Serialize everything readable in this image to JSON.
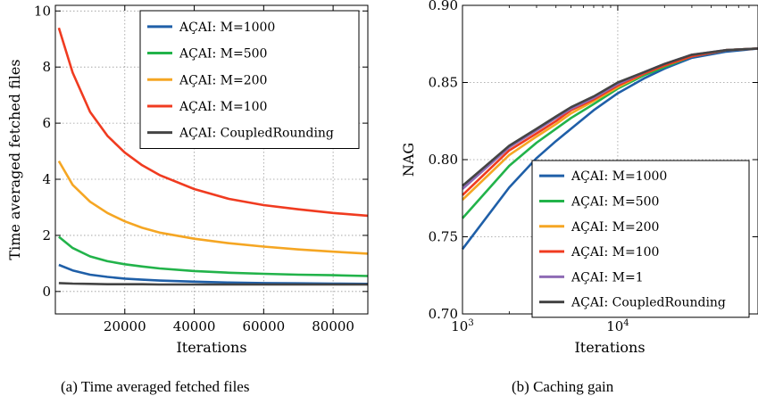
{
  "chart_data": [
    {
      "type": "line",
      "caption": "(a) Time averaged fetched files",
      "xlabel": "Iterations",
      "ylabel": "Time averaged fetched files",
      "xlim": [
        0,
        90000
      ],
      "ylim": [
        -0.8,
        10.2
      ],
      "xticks": [
        20000,
        40000,
        60000,
        80000
      ],
      "xtick_labels": [
        "20000",
        "40000",
        "60000",
        "80000"
      ],
      "yticks": [
        0,
        2,
        4,
        6,
        8,
        10
      ],
      "ytick_labels": [
        "0",
        "2",
        "4",
        "6",
        "8",
        "10"
      ],
      "grid": true,
      "legend": "top-right",
      "x": [
        1000,
        5000,
        10000,
        15000,
        20000,
        25000,
        30000,
        40000,
        50000,
        60000,
        70000,
        80000,
        90000
      ],
      "series": [
        {
          "name": "AÇAI: M=1000",
          "color": "#1f5fa8",
          "values": [
            0.95,
            0.75,
            0.6,
            0.52,
            0.46,
            0.42,
            0.39,
            0.35,
            0.32,
            0.3,
            0.29,
            0.28,
            0.27
          ]
        },
        {
          "name": "AÇAI: M=500",
          "color": "#22b34a",
          "values": [
            1.95,
            1.55,
            1.25,
            1.08,
            0.97,
            0.89,
            0.82,
            0.73,
            0.67,
            0.63,
            0.6,
            0.58,
            0.55
          ]
        },
        {
          "name": "AÇAI: M=200",
          "color": "#f5a623",
          "values": [
            4.65,
            3.8,
            3.2,
            2.8,
            2.5,
            2.27,
            2.1,
            1.88,
            1.72,
            1.6,
            1.5,
            1.42,
            1.35
          ]
        },
        {
          "name": "AÇAI: M=100",
          "color": "#f03b20",
          "values": [
            9.4,
            7.8,
            6.4,
            5.55,
            4.95,
            4.5,
            4.15,
            3.65,
            3.3,
            3.08,
            2.93,
            2.8,
            2.7
          ]
        },
        {
          "name": "AÇAI: CoupledRounding",
          "color": "#444444",
          "values": [
            0.3,
            0.28,
            0.27,
            0.26,
            0.26,
            0.26,
            0.25,
            0.25,
            0.25,
            0.25,
            0.25,
            0.25,
            0.25
          ]
        }
      ]
    },
    {
      "type": "line",
      "caption": "(b) Caching gain",
      "xlabel": "Iterations",
      "ylabel": "NAG",
      "xscale": "log",
      "xlim": [
        1000,
        80000
      ],
      "ylim": [
        0.7,
        0.9
      ],
      "xticks": [
        1000,
        10000
      ],
      "xtick_labels": [
        "10^3",
        "10^4"
      ],
      "yticks": [
        0.7,
        0.75,
        0.8,
        0.85,
        0.9
      ],
      "ytick_labels": [
        "0.70",
        "0.75",
        "0.80",
        "0.85",
        "0.90"
      ],
      "grid": true,
      "legend": "lower-right",
      "x": [
        1000,
        2000,
        3000,
        4000,
        5000,
        7000,
        10000,
        15000,
        20000,
        30000,
        50000,
        80000
      ],
      "series": [
        {
          "name": "AÇAI: M=1000",
          "color": "#1f5fa8",
          "values": [
            0.742,
            0.782,
            0.801,
            0.812,
            0.82,
            0.832,
            0.843,
            0.853,
            0.859,
            0.866,
            0.87,
            0.872
          ]
        },
        {
          "name": "AÇAI: M=500",
          "color": "#22b34a",
          "values": [
            0.762,
            0.796,
            0.811,
            0.82,
            0.827,
            0.836,
            0.846,
            0.855,
            0.86,
            0.867,
            0.871,
            0.872
          ]
        },
        {
          "name": "AÇAI: M=200",
          "color": "#f5a623",
          "values": [
            0.774,
            0.803,
            0.815,
            0.823,
            0.83,
            0.838,
            0.847,
            0.856,
            0.861,
            0.867,
            0.871,
            0.872
          ]
        },
        {
          "name": "AÇAI: M=100",
          "color": "#f03b20",
          "values": [
            0.777,
            0.806,
            0.817,
            0.825,
            0.832,
            0.839,
            0.848,
            0.856,
            0.861,
            0.867,
            0.871,
            0.872
          ]
        },
        {
          "name": "AÇAI: M=1",
          "color": "#8e6bb5",
          "values": [
            0.781,
            0.808,
            0.819,
            0.827,
            0.833,
            0.84,
            0.849,
            0.857,
            0.862,
            0.868,
            0.871,
            0.872
          ]
        },
        {
          "name": "AÇAI: CoupledRounding",
          "color": "#444444",
          "values": [
            0.783,
            0.809,
            0.82,
            0.828,
            0.834,
            0.841,
            0.85,
            0.857,
            0.862,
            0.868,
            0.871,
            0.872
          ]
        }
      ]
    }
  ]
}
